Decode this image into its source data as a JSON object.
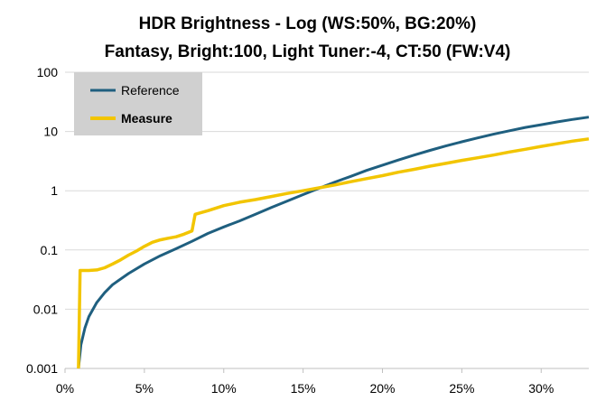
{
  "chart_data": {
    "type": "line",
    "title": "HDR Brightness - Log (WS:50%, BG:20%)",
    "subtitle": "Fantasy, Bright:100, Light Tuner:-4, CT:50 (FW:V4)",
    "xlabel": "",
    "ylabel": "",
    "x_scale": "linear",
    "y_scale": "log",
    "xlim": [
      0,
      0.33
    ],
    "ylim": [
      0.001,
      100
    ],
    "x_ticks": [
      {
        "value": 0,
        "label": "0%"
      },
      {
        "value": 0.05,
        "label": "5%"
      },
      {
        "value": 0.1,
        "label": "10%"
      },
      {
        "value": 0.15,
        "label": "15%"
      },
      {
        "value": 0.2,
        "label": "20%"
      },
      {
        "value": 0.25,
        "label": "25%"
      },
      {
        "value": 0.3,
        "label": "30%"
      }
    ],
    "y_ticks": [
      {
        "value": 0.001,
        "label": "0.001"
      },
      {
        "value": 0.01,
        "label": "0.01"
      },
      {
        "value": 0.1,
        "label": "0.1"
      },
      {
        "value": 1,
        "label": "1"
      },
      {
        "value": 10,
        "label": "10"
      },
      {
        "value": 100,
        "label": "100"
      }
    ],
    "grid": {
      "horizontal": true,
      "vertical": false,
      "color": "#d9d9d9"
    },
    "legend": {
      "placement": "top-left",
      "background": "#d0d0d0"
    },
    "series": [
      {
        "name": "Reference",
        "color": "#1f5f7f",
        "points": [
          [
            0.0085,
            0.001
          ],
          [
            0.01,
            0.0025
          ],
          [
            0.0125,
            0.0048
          ],
          [
            0.015,
            0.0075
          ],
          [
            0.02,
            0.013
          ],
          [
            0.025,
            0.019
          ],
          [
            0.03,
            0.026
          ],
          [
            0.04,
            0.04
          ],
          [
            0.05,
            0.058
          ],
          [
            0.06,
            0.08
          ],
          [
            0.07,
            0.105
          ],
          [
            0.08,
            0.14
          ],
          [
            0.09,
            0.19
          ],
          [
            0.1,
            0.245
          ],
          [
            0.11,
            0.31
          ],
          [
            0.12,
            0.4
          ],
          [
            0.13,
            0.52
          ],
          [
            0.14,
            0.67
          ],
          [
            0.15,
            0.86
          ],
          [
            0.16,
            1.1
          ],
          [
            0.17,
            1.4
          ],
          [
            0.18,
            1.75
          ],
          [
            0.19,
            2.2
          ],
          [
            0.2,
            2.7
          ],
          [
            0.21,
            3.3
          ],
          [
            0.22,
            4.0
          ],
          [
            0.23,
            4.8
          ],
          [
            0.24,
            5.7
          ],
          [
            0.25,
            6.7
          ],
          [
            0.26,
            7.8
          ],
          [
            0.27,
            9.0
          ],
          [
            0.28,
            10.3
          ],
          [
            0.29,
            11.7
          ],
          [
            0.3,
            13.0
          ],
          [
            0.31,
            14.5
          ],
          [
            0.32,
            16.0
          ],
          [
            0.33,
            17.5
          ]
        ]
      },
      {
        "name": "Measure",
        "color": "#f2c500",
        "points": [
          [
            0.0085,
            0.001
          ],
          [
            0.0095,
            0.045
          ],
          [
            0.015,
            0.045
          ],
          [
            0.02,
            0.046
          ],
          [
            0.025,
            0.05
          ],
          [
            0.03,
            0.058
          ],
          [
            0.035,
            0.068
          ],
          [
            0.04,
            0.082
          ],
          [
            0.045,
            0.096
          ],
          [
            0.05,
            0.115
          ],
          [
            0.055,
            0.135
          ],
          [
            0.06,
            0.148
          ],
          [
            0.065,
            0.158
          ],
          [
            0.07,
            0.167
          ],
          [
            0.075,
            0.185
          ],
          [
            0.078,
            0.2
          ],
          [
            0.08,
            0.21
          ],
          [
            0.082,
            0.4
          ],
          [
            0.09,
            0.46
          ],
          [
            0.1,
            0.56
          ],
          [
            0.11,
            0.64
          ],
          [
            0.12,
            0.71
          ],
          [
            0.13,
            0.8
          ],
          [
            0.14,
            0.9
          ],
          [
            0.15,
            1.0
          ],
          [
            0.16,
            1.12
          ],
          [
            0.17,
            1.25
          ],
          [
            0.18,
            1.42
          ],
          [
            0.19,
            1.6
          ],
          [
            0.2,
            1.8
          ],
          [
            0.21,
            2.05
          ],
          [
            0.22,
            2.3
          ],
          [
            0.23,
            2.6
          ],
          [
            0.24,
            2.9
          ],
          [
            0.25,
            3.25
          ],
          [
            0.26,
            3.6
          ],
          [
            0.27,
            4.0
          ],
          [
            0.28,
            4.5
          ],
          [
            0.29,
            5.0
          ],
          [
            0.3,
            5.6
          ],
          [
            0.31,
            6.2
          ],
          [
            0.32,
            6.9
          ],
          [
            0.33,
            7.5
          ]
        ]
      }
    ]
  }
}
